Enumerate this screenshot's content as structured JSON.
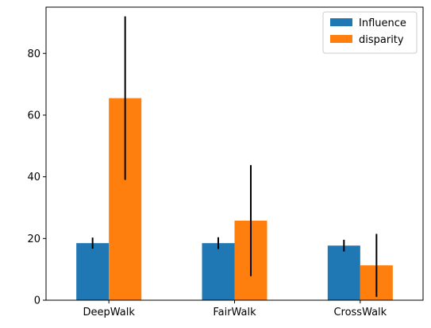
{
  "chart_data": {
    "type": "bar",
    "categories": [
      "DeepWalk",
      "FairWalk",
      "CrossWalk"
    ],
    "series": [
      {
        "name": "Influence",
        "color": "#1f77b4",
        "values": [
          18.5,
          18.5,
          17.7
        ],
        "error": [
          1.8,
          1.9,
          1.9
        ]
      },
      {
        "name": "disparity",
        "color": "#ff7f0e",
        "values": [
          65.5,
          25.8,
          11.3
        ],
        "error": [
          26.5,
          18.0,
          10.2
        ]
      }
    ],
    "yticks": [
      0,
      20,
      40,
      60,
      80
    ],
    "ylim": [
      0,
      95
    ],
    "grid": false,
    "legend_position": "top-right",
    "errorbar_color": "#000000"
  }
}
